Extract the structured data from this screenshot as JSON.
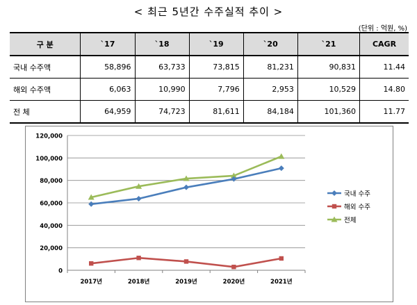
{
  "title": "< 최근 5년간 수주실적 추이 >",
  "unit": "(단위 : 억원, %)",
  "table": {
    "headers": [
      "구  분",
      "`17",
      "`18",
      "`19",
      "`20",
      "`21",
      "CAGR"
    ],
    "rows": [
      {
        "label": "국내 수주액",
        "cells": [
          "58,896",
          "63,733",
          "73,815",
          "81,231",
          "90,831",
          "11.44"
        ]
      },
      {
        "label": "해외 수주액",
        "cells": [
          "6,063",
          "10,990",
          "7,796",
          "2,953",
          "10,529",
          "14.80"
        ]
      },
      {
        "label": "전   체",
        "cells": [
          "64,959",
          "74,723",
          "81,611",
          "84,184",
          "101,360",
          "11.77"
        ]
      }
    ]
  },
  "chart_data": {
    "type": "line",
    "categories": [
      "2017년",
      "2018년",
      "2019년",
      "2020년",
      "2021년"
    ],
    "ylim": [
      0,
      120000
    ],
    "yticks": [
      "0",
      "20,000",
      "40,000",
      "60,000",
      "80,000",
      "100,000",
      "120,000"
    ],
    "grid": true,
    "legend": "right",
    "series": [
      {
        "name": "국내 수주",
        "color": "#4A7EBB",
        "marker": "diamond",
        "values": [
          58896,
          63733,
          73815,
          81231,
          90831
        ]
      },
      {
        "name": "해외 수주",
        "color": "#C0504D",
        "marker": "square",
        "values": [
          6063,
          10990,
          7796,
          2953,
          10529
        ]
      },
      {
        "name": "전체",
        "color": "#9BBB59",
        "marker": "triangle",
        "values": [
          64959,
          74723,
          81611,
          84184,
          101360
        ]
      }
    ]
  }
}
